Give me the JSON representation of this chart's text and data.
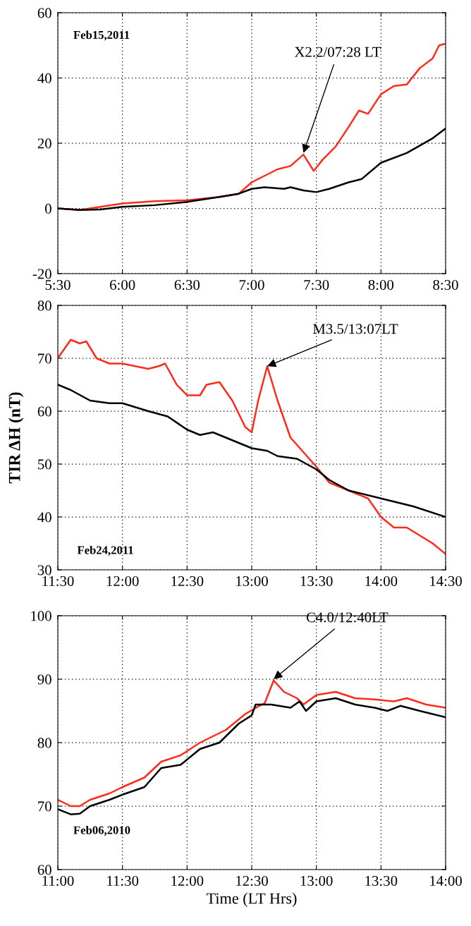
{
  "chart_data": [
    {
      "type": "line",
      "xlim": [
        5.5,
        8.5
      ],
      "ylim": [
        -20,
        60
      ],
      "yticks": [
        -20,
        0,
        20,
        40,
        60
      ],
      "xticks": [
        {
          "value": 5.5,
          "label": "5:30"
        },
        {
          "value": 6.0,
          "label": "6:00"
        },
        {
          "value": 6.5,
          "label": "6:30"
        },
        {
          "value": 7.0,
          "label": "7:00"
        },
        {
          "value": 7.5,
          "label": "7:30"
        },
        {
          "value": 8.0,
          "label": "8:00"
        },
        {
          "value": 8.5,
          "label": "8:30"
        }
      ],
      "grid": true,
      "line_style": "solid",
      "marker": "none",
      "series": [
        {
          "color": "#ff2a1a",
          "x": [
            5.5,
            5.67,
            5.83,
            6.0,
            6.25,
            6.5,
            6.75,
            6.9,
            7.0,
            7.1,
            7.2,
            7.3,
            7.4,
            7.48,
            7.55,
            7.65,
            7.75,
            7.83,
            7.9,
            8.0,
            8.1,
            8.2,
            8.3,
            8.4,
            8.45,
            8.5
          ],
          "values": [
            0,
            -0.5,
            0.5,
            1.5,
            2.2,
            2.5,
            3.5,
            4.5,
            8,
            10,
            12,
            13,
            16.5,
            11.5,
            15,
            19,
            25,
            30,
            29,
            35,
            37.5,
            38,
            43,
            46,
            50,
            50.5
          ]
        },
        {
          "color": "#000000",
          "x": [
            5.5,
            5.67,
            5.83,
            6.0,
            6.25,
            6.5,
            6.75,
            6.9,
            7.0,
            7.1,
            7.25,
            7.3,
            7.4,
            7.5,
            7.6,
            7.75,
            7.85,
            8.0,
            8.2,
            8.4,
            8.5
          ],
          "values": [
            0,
            -0.5,
            -0.3,
            0.5,
            1,
            2,
            3.5,
            4.5,
            6,
            6.5,
            6,
            6.5,
            5.5,
            5,
            6,
            8,
            9,
            14,
            17,
            21.5,
            24.5
          ]
        }
      ],
      "annotations": [
        "Feb15,2011",
        {
          "text": "X2.2/07:28 LT",
          "x": 7.4,
          "y": 17
        }
      ]
    },
    {
      "type": "line",
      "xlim": [
        11.5,
        14.5
      ],
      "ylim": [
        30,
        80
      ],
      "yticks": [
        30,
        40,
        50,
        60,
        70,
        80
      ],
      "xticks": [
        {
          "value": 11.5,
          "label": "11:30"
        },
        {
          "value": 12.0,
          "label": "12:00"
        },
        {
          "value": 12.5,
          "label": "12:30"
        },
        {
          "value": 13.0,
          "label": "13:00"
        },
        {
          "value": 13.5,
          "label": "13:30"
        },
        {
          "value": 14.0,
          "label": "14:00"
        },
        {
          "value": 14.5,
          "label": "14:30"
        }
      ],
      "grid": true,
      "line_style": "solid",
      "marker": "none",
      "ylabel": "TIR ΔH (nT)",
      "series": [
        {
          "color": "#ff2a1a",
          "x": [
            11.5,
            11.6,
            11.67,
            11.72,
            11.8,
            11.9,
            12.0,
            12.2,
            12.28,
            12.33,
            12.42,
            12.5,
            12.6,
            12.65,
            12.75,
            12.85,
            12.95,
            13.0,
            13.05,
            13.12,
            13.2,
            13.3,
            13.5,
            13.6,
            13.75,
            13.9,
            14.0,
            14.1,
            14.2,
            14.3,
            14.4,
            14.5
          ],
          "values": [
            70,
            73.5,
            72.8,
            73.2,
            70,
            69,
            69,
            68,
            68.5,
            69,
            65,
            63,
            63,
            65,
            65.5,
            62,
            57,
            56,
            62,
            68.5,
            62,
            55,
            49.5,
            46.5,
            45,
            43.5,
            40,
            38,
            38,
            36.5,
            35,
            33
          ]
        },
        {
          "color": "#000000",
          "x": [
            11.5,
            11.6,
            11.75,
            11.9,
            12.0,
            12.2,
            12.35,
            12.5,
            12.6,
            12.7,
            12.85,
            13.0,
            13.12,
            13.2,
            13.35,
            13.5,
            13.6,
            13.75,
            14.0,
            14.25,
            14.5
          ],
          "values": [
            65,
            64,
            62,
            61.5,
            61.5,
            60,
            59,
            56.5,
            55.5,
            56,
            54.5,
            53,
            52.5,
            51.5,
            51,
            49,
            47,
            45,
            43.5,
            42,
            40
          ]
        }
      ],
      "annotations": [
        "Feb24,2011",
        {
          "text": "M3.5/13:07LT",
          "x": 13.12,
          "y": 68.5
        }
      ]
    },
    {
      "type": "line",
      "xlim": [
        11,
        14
      ],
      "ylim": [
        60,
        100
      ],
      "yticks": [
        60,
        70,
        80,
        90,
        100
      ],
      "xticks": [
        {
          "value": 11,
          "label": "11:00"
        },
        {
          "value": 11.5,
          "label": "11:30"
        },
        {
          "value": 12,
          "label": "12:00"
        },
        {
          "value": 12.5,
          "label": "12:30"
        },
        {
          "value": 13,
          "label": "13:00"
        },
        {
          "value": 13.5,
          "label": "13:30"
        },
        {
          "value": 14,
          "label": "14:00"
        }
      ],
      "grid": true,
      "line_style": "solid",
      "marker": "none",
      "xlabel": "Time (LT Hrs)",
      "series": [
        {
          "color": "#ff2a1a",
          "x": [
            11,
            11.05,
            11.1,
            11.17,
            11.25,
            11.4,
            11.5,
            11.67,
            11.8,
            11.95,
            12.1,
            12.3,
            12.45,
            12.55,
            12.6,
            12.67,
            12.75,
            12.85,
            12.9,
            13.0,
            13.15,
            13.3,
            13.45,
            13.6,
            13.7,
            13.85,
            14.0
          ],
          "values": [
            71,
            70.5,
            70,
            70,
            71,
            72,
            73,
            74.5,
            77,
            78,
            80,
            82,
            84.5,
            85.7,
            86.2,
            89.8,
            88,
            87,
            86,
            87.5,
            88,
            87,
            86.8,
            86.5,
            87,
            86,
            85.5
          ]
        },
        {
          "color": "#000000",
          "x": [
            11,
            11.1,
            11.17,
            11.25,
            11.4,
            11.5,
            11.67,
            11.8,
            11.95,
            12.1,
            12.25,
            12.4,
            12.5,
            12.53,
            12.65,
            12.8,
            12.87,
            12.92,
            13.0,
            13.15,
            13.3,
            13.45,
            13.55,
            13.65,
            13.8,
            14.0
          ],
          "values": [
            69.5,
            68.7,
            68.8,
            70,
            71,
            71.8,
            73,
            76,
            76.5,
            79,
            80,
            83,
            84.3,
            86,
            86,
            85.5,
            86.5,
            85,
            86.5,
            87,
            86,
            85.5,
            85,
            85.8,
            85,
            84
          ]
        }
      ],
      "annotations": [
        "Feb06,2010",
        {
          "text": "C4.0/12:40LT",
          "x": 12.67,
          "y": 90
        }
      ]
    }
  ]
}
